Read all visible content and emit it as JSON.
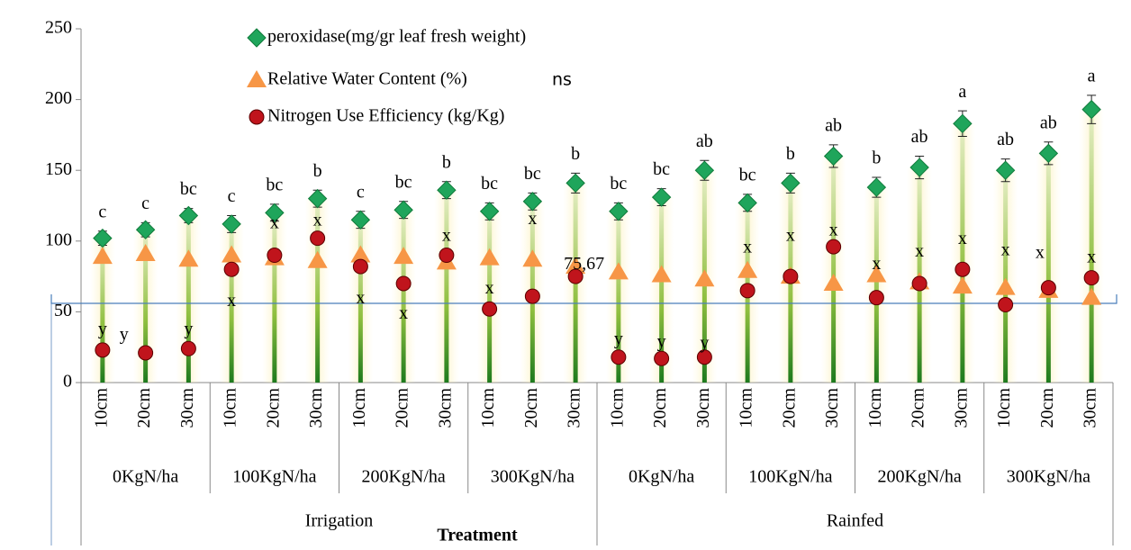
{
  "chart_data": {
    "type": "line-markers",
    "x_label": "Treatment",
    "categories": [
      "10cm",
      "20cm",
      "30cm",
      "10cm",
      "20cm",
      "30cm",
      "10cm",
      "20cm",
      "30cm",
      "10cm",
      "20cm",
      "30cm",
      "10cm",
      "20cm",
      "30cm",
      "10cm",
      "20cm",
      "30cm",
      "10cm",
      "20cm",
      "30cm",
      "10cm",
      "20cm",
      "30cm"
    ],
    "groups": [
      "0KgN/ha",
      "100KgN/ha",
      "200KgN/ha",
      "300KgN/ha",
      "0KgN/ha",
      "100KgN/ha",
      "200KgN/ha",
      "300KgN/ha"
    ],
    "super_groups": [
      "Irrigation",
      "Rainfed"
    ],
    "ylim": [
      0,
      250
    ],
    "yticks": [
      0,
      50,
      100,
      150,
      200,
      250
    ],
    "reference_line": 56,
    "legend_note": "ns",
    "series": [
      {
        "name": "peroxidase(mg/gr leaf fresh weight)",
        "marker": "diamond",
        "color": "#1fa55b",
        "values": [
          102,
          108,
          118,
          112,
          120,
          130,
          115,
          122,
          136,
          121,
          128,
          141,
          121,
          131,
          150,
          127,
          141,
          160,
          138,
          152,
          183,
          150,
          162,
          193
        ],
        "errors": [
          5,
          5,
          5,
          6,
          6,
          6,
          6,
          6,
          6,
          6,
          6,
          7,
          6,
          6,
          7,
          6,
          7,
          8,
          7,
          8,
          9,
          8,
          8,
          10
        ],
        "value_letters": [
          "c",
          "c",
          "bc",
          "c",
          "bc",
          "b",
          "c",
          "bc",
          "b",
          "bc",
          "bc",
          "b",
          "bc",
          "bc",
          "ab",
          "bc",
          "b",
          "ab",
          "b",
          "ab",
          "a",
          "ab",
          "ab",
          "a"
        ]
      },
      {
        "name": "Relative Water Content (%)",
        "marker": "triangle",
        "color": "#f79646",
        "values": [
          89,
          91,
          87,
          90,
          88,
          86,
          90,
          89,
          85,
          88,
          87,
          82,
          78,
          76,
          73,
          79,
          75,
          70,
          76,
          71,
          68,
          67,
          65,
          60
        ]
      },
      {
        "name": "Nitrogen Use Efficiency (kg/Kg)",
        "marker": "circle",
        "color": "#c0141c",
        "values": [
          23,
          21,
          24,
          80,
          90,
          102,
          82,
          70,
          90,
          52,
          61,
          75,
          18,
          17,
          18,
          65,
          75,
          96,
          60,
          70,
          80,
          55,
          67,
          74
        ]
      }
    ],
    "annotations": [
      {
        "text": "y",
        "category": 0,
        "y": 37
      },
      {
        "text": "y",
        "category": 0.5,
        "y": 33
      },
      {
        "text": "y",
        "category": 2,
        "y": 37
      },
      {
        "text": "x",
        "category": 3,
        "y": 57
      },
      {
        "text": "x",
        "category": 4,
        "y": 112
      },
      {
        "text": "x",
        "category": 5,
        "y": 114
      },
      {
        "text": "x",
        "category": 6,
        "y": 59
      },
      {
        "text": "x",
        "category": 7,
        "y": 48
      },
      {
        "text": "x",
        "category": 8,
        "y": 103
      },
      {
        "text": "x",
        "category": 9,
        "y": 66
      },
      {
        "text": "x",
        "category": 10,
        "y": 115
      },
      {
        "text": "75,67",
        "category": 11.2,
        "y": 83
      },
      {
        "text": "y",
        "category": 12,
        "y": 30
      },
      {
        "text": "y",
        "category": 13,
        "y": 28
      },
      {
        "text": "y",
        "category": 14,
        "y": 27
      },
      {
        "text": "x",
        "category": 15,
        "y": 95
      },
      {
        "text": "x",
        "category": 16,
        "y": 103
      },
      {
        "text": "x",
        "category": 17,
        "y": 107
      },
      {
        "text": "x",
        "category": 18,
        "y": 83
      },
      {
        "text": "x",
        "category": 19,
        "y": 92
      },
      {
        "text": "x",
        "category": 20,
        "y": 101
      },
      {
        "text": "x",
        "category": 21,
        "y": 93
      },
      {
        "text": "x",
        "category": 21.8,
        "y": 91
      },
      {
        "text": "x",
        "category": 23,
        "y": 88
      }
    ]
  }
}
